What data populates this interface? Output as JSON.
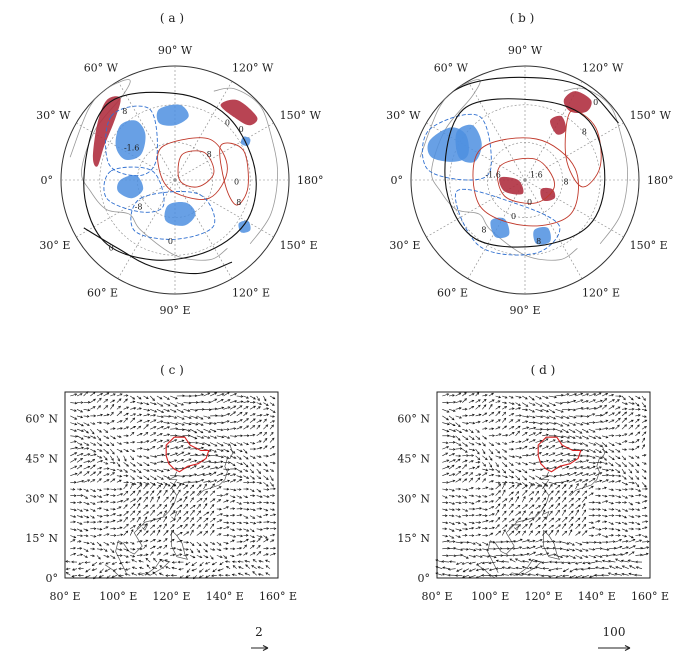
{
  "chart_data": [
    {
      "panel": "(a)",
      "type": "polar-contour-map",
      "projection": "north-polar-stereographic",
      "lon_labels": [
        "90° W",
        "120° W",
        "150° W",
        "180°",
        "150° E",
        "120° E",
        "90° E",
        "60° E",
        "30° E",
        "0°",
        "30° W",
        "60° W"
      ],
      "contour_labels": [
        "8",
        "0",
        "-1.6",
        "8",
        "0",
        "0",
        "8",
        "0",
        "0",
        "-8"
      ],
      "colors": {
        "positive": "#c0392b",
        "positive_fill": "#b03040",
        "negative": "#2f6fd0",
        "negative_fill": "#4d8fe0",
        "zero": "#111111"
      }
    },
    {
      "panel": "(b)",
      "type": "polar-contour-map",
      "projection": "north-polar-stereographic",
      "lon_labels": [
        "90° W",
        "120° W",
        "150° W",
        "180°",
        "150° E",
        "120° E",
        "90° E",
        "60° E",
        "30° E",
        "0°",
        "30° W",
        "60° W"
      ],
      "contour_labels": [
        "0",
        "8",
        "1.6",
        "-1.6",
        "8",
        "0",
        "8",
        "0",
        "8"
      ],
      "colors": {
        "positive": "#c0392b",
        "positive_fill": "#b03040",
        "negative": "#2f6fd0",
        "negative_fill": "#4d8fe0",
        "zero": "#111111"
      }
    },
    {
      "panel": "(c)",
      "type": "vector",
      "x_tick_labels": [
        "80° E",
        "100° E",
        "120° E",
        "140° E",
        "160° E"
      ],
      "y_tick_labels": [
        "60° N",
        "45° N",
        "30° N",
        "15° N",
        "0°"
      ],
      "xlim": [
        80,
        160
      ],
      "ylim": [
        0,
        70
      ],
      "reference_vector": "2",
      "highlight_region_color": "#d62020"
    },
    {
      "panel": "(d)",
      "type": "vector",
      "x_tick_labels": [
        "80° E",
        "100° E",
        "120° E",
        "140° E",
        "160° E"
      ],
      "y_tick_labels": [
        "60° N",
        "45° N",
        "30° N",
        "15° N",
        "0°"
      ],
      "xlim": [
        80,
        160
      ],
      "ylim": [
        0,
        70
      ],
      "reference_vector": "100",
      "highlight_region_color": "#d62020"
    }
  ],
  "labels": {
    "a": "( a )",
    "b": "( b )",
    "c": "( c )",
    "d": "( d )"
  }
}
